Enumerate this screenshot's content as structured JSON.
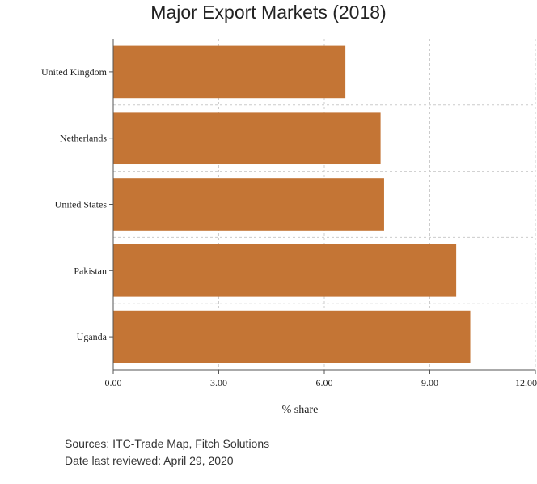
{
  "chart_data": {
    "type": "bar",
    "orientation": "horizontal",
    "title": "Major Export Markets (2018)",
    "xlabel": "% share",
    "ylabel": "",
    "categories": [
      "United Kingdom",
      "Netherlands",
      "United States",
      "Pakistan",
      "Uganda"
    ],
    "values": [
      6.6,
      7.6,
      7.7,
      9.75,
      10.15
    ],
    "xlim": [
      0,
      12
    ],
    "xticks": [
      "0.00",
      "3.00",
      "6.00",
      "9.00",
      "12.00"
    ],
    "bar_color": "#c47535",
    "grid": true
  },
  "footer": {
    "sources": "Sources: ITC-Trade Map, Fitch Solutions",
    "reviewed": "Date last reviewed: April 29, 2020"
  }
}
